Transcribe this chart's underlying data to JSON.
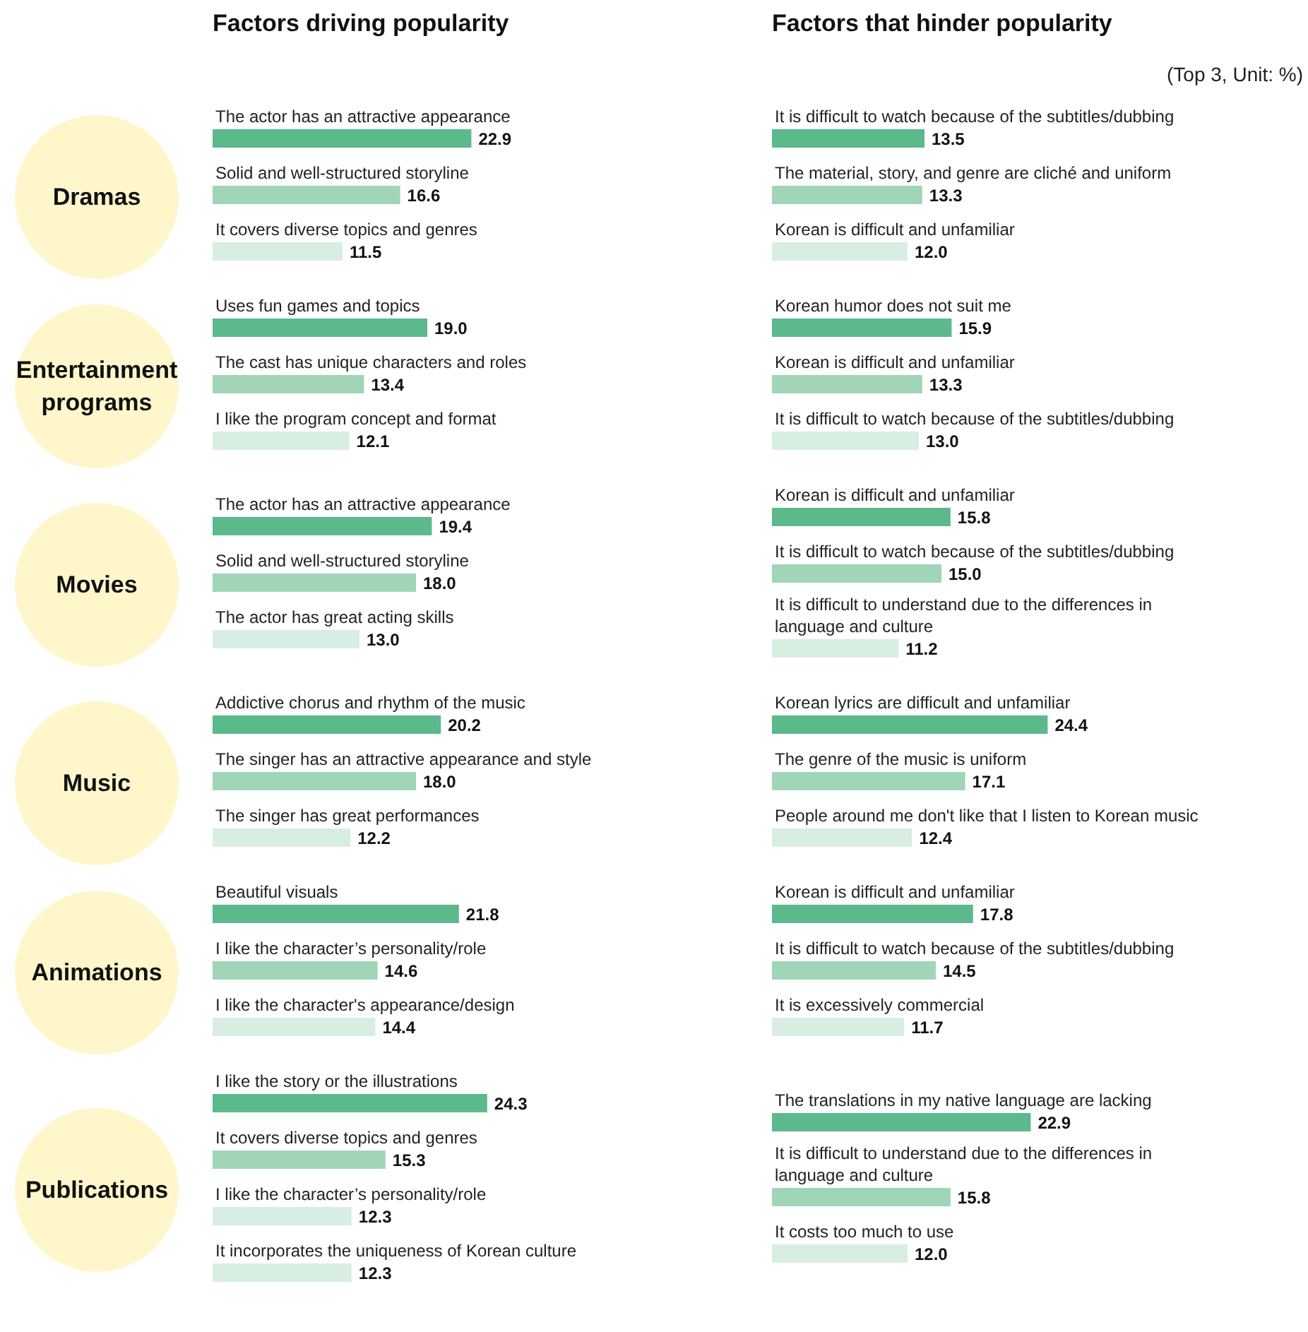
{
  "chart_data": [
    {
      "type": "bar",
      "orientation": "horizontal",
      "title": "Dramas",
      "subtitle": "Factors driving popularity",
      "categories": [
        "The actor has an attractive appearance",
        "Solid and well-structured storyline",
        "It covers diverse topics and genres"
      ],
      "values": [
        22.9,
        16.6,
        11.5
      ],
      "value_labels": [
        "22.9",
        "16.6",
        "11.5"
      ],
      "colors": [
        "#5bb98c",
        "#a0d5b7",
        "#d8eee2"
      ]
    },
    {
      "type": "bar",
      "orientation": "horizontal",
      "subtitle": "Factors that hinder popularity",
      "annotations": [
        "(Top 3, Unit: %)"
      ],
      "categories": [
        "It is difficult to watch because of the subtitles/dubbing",
        "The material, story, and genre are cliché and uniform",
        "Korean is difficult and unfamiliar"
      ],
      "values": [
        13.5,
        13.3,
        12.0
      ],
      "value_labels": [
        "13.5",
        "13.3",
        "12.0"
      ],
      "colors": [
        "#5bb98c",
        "#a0d5b7",
        "#d8eee2"
      ]
    },
    {
      "type": "bar",
      "orientation": "horizontal",
      "title": "Entertainment programs",
      "categories": [
        "Uses fun games and topics",
        "The cast has unique characters and roles",
        "I like the program concept and format"
      ],
      "values": [
        19.0,
        13.4,
        12.1
      ],
      "value_labels": [
        "19.0",
        "13.4",
        "12.1"
      ],
      "colors": [
        "#5bb98c",
        "#a0d5b7",
        "#d8eee2"
      ]
    },
    {
      "type": "bar",
      "orientation": "horizontal",
      "categories": [
        "Korean humor does not suit me",
        "Korean is difficult and unfamiliar",
        "It is difficult to watch because of the subtitles/dubbing"
      ],
      "values": [
        15.9,
        13.3,
        13.0
      ],
      "value_labels": [
        "15.9",
        "13.3",
        "13.0"
      ],
      "colors": [
        "#5bb98c",
        "#a0d5b7",
        "#d8eee2"
      ]
    },
    {
      "type": "bar",
      "orientation": "horizontal",
      "title": "Movies",
      "categories": [
        "The actor has an attractive appearance",
        "Solid and well-structured storyline",
        "The actor has great acting skills"
      ],
      "values": [
        19.4,
        18.0,
        13.0
      ],
      "value_labels": [
        "19.4",
        "18.0",
        "13.0"
      ],
      "colors": [
        "#5bb98c",
        "#a0d5b7",
        "#d8eee2"
      ]
    },
    {
      "type": "bar",
      "orientation": "horizontal",
      "categories": [
        "Korean is difficult and unfamiliar",
        "It is difficult to watch because of the subtitles/dubbing",
        "It is difficult to understand due to the differences in language and culture"
      ],
      "values": [
        15.8,
        15.0,
        11.2
      ],
      "value_labels": [
        "15.8",
        "15.0",
        "11.2"
      ],
      "colors": [
        "#5bb98c",
        "#a0d5b7",
        "#d8eee2"
      ]
    },
    {
      "type": "bar",
      "orientation": "horizontal",
      "title": "Music",
      "categories": [
        "Addictive chorus and rhythm of the music",
        "The singer has an attractive appearance and style",
        "The singer has great performances"
      ],
      "values": [
        20.2,
        18.0,
        12.2
      ],
      "value_labels": [
        "20.2",
        "18.0",
        "12.2"
      ],
      "colors": [
        "#5bb98c",
        "#a0d5b7",
        "#d8eee2"
      ]
    },
    {
      "type": "bar",
      "orientation": "horizontal",
      "categories": [
        "Korean lyrics are difficult and unfamiliar",
        "The genre of the music is uniform",
        "People around me don't like that I listen to Korean music"
      ],
      "values": [
        24.4,
        17.1,
        12.4
      ],
      "value_labels": [
        "24.4",
        "17.1",
        "12.4"
      ],
      "colors": [
        "#5bb98c",
        "#a0d5b7",
        "#d8eee2"
      ]
    },
    {
      "type": "bar",
      "orientation": "horizontal",
      "title": "Animations",
      "categories": [
        "Beautiful visuals",
        "I like the character’s personality/role",
        "I like the character's appearance/design"
      ],
      "values": [
        21.8,
        14.6,
        14.4
      ],
      "value_labels": [
        "21.8",
        "14.6",
        "14.4"
      ],
      "colors": [
        "#5bb98c",
        "#a0d5b7",
        "#d8eee2"
      ]
    },
    {
      "type": "bar",
      "orientation": "horizontal",
      "categories": [
        "Korean is difficult and unfamiliar",
        "It is difficult to watch because of the subtitles/dubbing",
        "It is excessively commercial"
      ],
      "values": [
        17.8,
        14.5,
        11.7
      ],
      "value_labels": [
        "17.8",
        "14.5",
        "11.7"
      ],
      "colors": [
        "#5bb98c",
        "#a0d5b7",
        "#d8eee2"
      ]
    },
    {
      "type": "bar",
      "orientation": "horizontal",
      "title": "Publications",
      "categories": [
        "I like the story or the illustrations",
        "It covers diverse topics and genres",
        "I like the character’s personality/role",
        "It incorporates the uniqueness of Korean culture"
      ],
      "values": [
        24.3,
        15.3,
        12.3,
        12.3
      ],
      "value_labels": [
        "24.3",
        "15.3",
        "12.3",
        "12.3"
      ],
      "colors": [
        "#5bb98c",
        "#a0d5b7",
        "#d8eee2",
        "#d8eee2"
      ]
    },
    {
      "type": "bar",
      "orientation": "horizontal",
      "categories": [
        "The translations in my native language are lacking",
        "It is difficult to understand due to the differences in language and culture",
        "It costs too much to use"
      ],
      "values": [
        22.9,
        15.8,
        12.0
      ],
      "value_labels": [
        "22.9",
        "15.8",
        "12.0"
      ],
      "colors": [
        "#5bb98c",
        "#a0d5b7",
        "#d8eee2"
      ]
    }
  ]
}
